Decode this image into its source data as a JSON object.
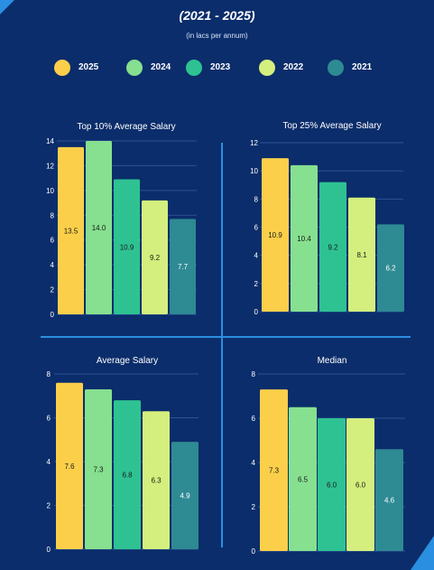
{
  "header": {
    "title": "(2021 - 2025)",
    "subtitle": "(in lacs per annum)"
  },
  "legend": [
    {
      "label": "2025",
      "color": "#fccf4a"
    },
    {
      "label": "2024",
      "color": "#86e08f"
    },
    {
      "label": "2023",
      "color": "#2ec292"
    },
    {
      "label": "2022",
      "color": "#d4ef7d"
    },
    {
      "label": "2021",
      "color": "#2e8a93"
    }
  ],
  "chart_data": [
    {
      "type": "bar",
      "title": "Top 10% Average Salary",
      "categories": [
        "2025",
        "2024",
        "2023",
        "2022",
        "2021"
      ],
      "values": [
        13.5,
        14.0,
        10.9,
        9.2,
        7.7
      ],
      "value_labels": [
        "13.5",
        "14.0",
        "10.9",
        "9.2",
        "7.7"
      ],
      "yticks": [
        "0",
        "2",
        "4",
        "6",
        "8",
        "10",
        "12",
        "14"
      ],
      "ylim": [
        0,
        14
      ],
      "grid": true
    },
    {
      "type": "bar",
      "title": "Top 25% Average Salary",
      "categories": [
        "2025",
        "2024",
        "2023",
        "2022",
        "2021"
      ],
      "values": [
        10.9,
        10.4,
        9.2,
        8.1,
        6.2
      ],
      "value_labels": [
        "10.9",
        "10.4",
        "9.2",
        "8.1",
        "6.2"
      ],
      "yticks": [
        "0",
        "2",
        "4",
        "6",
        "8",
        "10",
        "12"
      ],
      "ylim": [
        0,
        12
      ],
      "grid": true
    },
    {
      "type": "bar",
      "title": "Average Salary",
      "categories": [
        "2025",
        "2024",
        "2023",
        "2022",
        "2021"
      ],
      "values": [
        7.6,
        7.3,
        6.8,
        6.3,
        4.9
      ],
      "value_labels": [
        "7.6",
        "7.3",
        "6.8",
        "6.3",
        "4.9"
      ],
      "yticks": [
        "0",
        "2",
        "4",
        "6",
        "8"
      ],
      "ylim": [
        0,
        8
      ],
      "grid": true
    },
    {
      "type": "bar",
      "title": "Median",
      "categories": [
        "2025",
        "2024",
        "2023",
        "2022",
        "2021"
      ],
      "values": [
        7.3,
        6.5,
        6.0,
        6.0,
        4.6
      ],
      "value_labels": [
        "7.3",
        "6.5",
        "6.0",
        "6.0",
        "4.6"
      ],
      "yticks": [
        "0",
        "2",
        "4",
        "6",
        "8"
      ],
      "ylim": [
        0,
        8
      ],
      "grid": true
    }
  ]
}
